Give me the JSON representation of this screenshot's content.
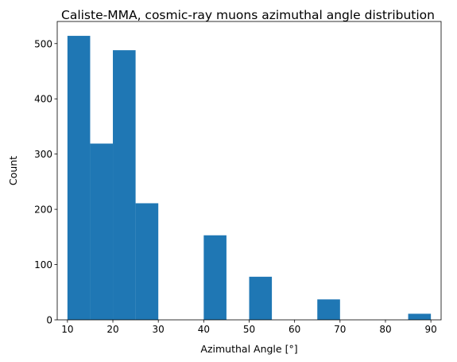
{
  "chart_data": {
    "type": "bar",
    "title": "Caliste-MMA, cosmic-ray muons azimuthal angle distribution",
    "xlabel": "Azimuthal Angle [°]",
    "ylabel": "Count",
    "xlim": [
      7.75,
      92.25
    ],
    "ylim": [
      0,
      540
    ],
    "xticks": [
      10,
      20,
      30,
      40,
      50,
      60,
      70,
      80,
      90
    ],
    "yticks": [
      0,
      100,
      200,
      300,
      400,
      500
    ],
    "bar_color": "#1f77b4",
    "bins": [
      {
        "x0": 10.0,
        "x1": 15.0,
        "value": 514
      },
      {
        "x0": 15.0,
        "x1": 20.0,
        "value": 319
      },
      {
        "x0": 20.0,
        "x1": 25.0,
        "value": 488
      },
      {
        "x0": 25.0,
        "x1": 30.0,
        "value": 211
      },
      {
        "x0": 30.0,
        "x1": 35.0,
        "value": 0
      },
      {
        "x0": 35.0,
        "x1": 40.0,
        "value": 0
      },
      {
        "x0": 40.0,
        "x1": 45.0,
        "value": 153
      },
      {
        "x0": 45.0,
        "x1": 50.0,
        "value": 0
      },
      {
        "x0": 50.0,
        "x1": 55.0,
        "value": 78
      },
      {
        "x0": 55.0,
        "x1": 60.0,
        "value": 0
      },
      {
        "x0": 60.0,
        "x1": 65.0,
        "value": 0
      },
      {
        "x0": 65.0,
        "x1": 70.0,
        "value": 37
      },
      {
        "x0": 70.0,
        "x1": 75.0,
        "value": 0
      },
      {
        "x0": 75.0,
        "x1": 80.0,
        "value": 0
      },
      {
        "x0": 80.0,
        "x1": 85.0,
        "value": 0
      },
      {
        "x0": 85.0,
        "x1": 90.0,
        "value": 11
      }
    ]
  }
}
